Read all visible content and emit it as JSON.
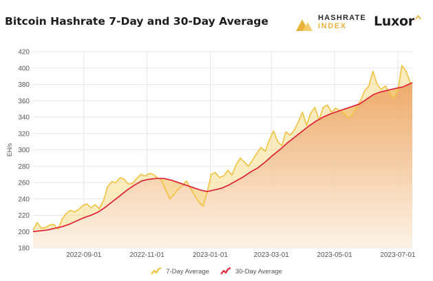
{
  "header": {
    "title": "Bitcoin Hashrate 7-Day and 30-Day Average",
    "brand1_line1": "HASHRATE",
    "brand1_line2": "INDEX",
    "brand2": "Luxor"
  },
  "colors": {
    "seven_day": "#f2c13f",
    "thirty_day": "#e0283a",
    "area_top": "#eca25a",
    "area_bottom": "#fdf1e4",
    "grid": "#e6e6e6",
    "text": "#555555"
  },
  "chart_data": {
    "type": "line",
    "title": "Bitcoin Hashrate 7-Day and 30-Day Average",
    "ylabel": "EH/s",
    "xlabel": "",
    "ylim": [
      180,
      420
    ],
    "yticks": [
      180,
      200,
      220,
      240,
      260,
      280,
      300,
      320,
      340,
      360,
      380,
      400,
      420
    ],
    "xticks": [
      "2022-09-01",
      "2022-11-01",
      "2023-01-01",
      "2023-03-01",
      "2023-05-01",
      "2023-07-01"
    ],
    "xrange": [
      "2022-07-14",
      "2023-07-15"
    ],
    "grid": true,
    "legend": "bottom",
    "series": [
      {
        "name": "7-Day Average",
        "dates": [
          "2022-07-14",
          "2022-07-18",
          "2022-07-22",
          "2022-07-26",
          "2022-07-30",
          "2022-08-03",
          "2022-08-07",
          "2022-08-11",
          "2022-08-15",
          "2022-08-19",
          "2022-08-23",
          "2022-08-27",
          "2022-08-31",
          "2022-09-04",
          "2022-09-08",
          "2022-09-12",
          "2022-09-16",
          "2022-09-20",
          "2022-09-24",
          "2022-09-28",
          "2022-10-02",
          "2022-10-06",
          "2022-10-10",
          "2022-10-14",
          "2022-10-18",
          "2022-10-22",
          "2022-10-26",
          "2022-10-30",
          "2022-11-03",
          "2022-11-07",
          "2022-11-11",
          "2022-11-15",
          "2022-11-19",
          "2022-11-23",
          "2022-11-27",
          "2022-12-01",
          "2022-12-05",
          "2022-12-09",
          "2022-12-13",
          "2022-12-17",
          "2022-12-21",
          "2022-12-25",
          "2022-12-29",
          "2023-01-02",
          "2023-01-06",
          "2023-01-10",
          "2023-01-14",
          "2023-01-18",
          "2023-01-22",
          "2023-01-26",
          "2023-01-30",
          "2023-02-03",
          "2023-02-07",
          "2023-02-11",
          "2023-02-15",
          "2023-02-19",
          "2023-02-23",
          "2023-02-27",
          "2023-03-03",
          "2023-03-07",
          "2023-03-11",
          "2023-03-15",
          "2023-03-19",
          "2023-03-23",
          "2023-03-27",
          "2023-03-31",
          "2023-04-04",
          "2023-04-08",
          "2023-04-12",
          "2023-04-16",
          "2023-04-20",
          "2023-04-24",
          "2023-04-28",
          "2023-05-02",
          "2023-05-06",
          "2023-05-10",
          "2023-05-14",
          "2023-05-18",
          "2023-05-22",
          "2023-05-26",
          "2023-05-30",
          "2023-06-03",
          "2023-06-07",
          "2023-06-11",
          "2023-06-15",
          "2023-06-19",
          "2023-06-23",
          "2023-06-27",
          "2023-07-01",
          "2023-07-05",
          "2023-07-09",
          "2023-07-13",
          "2023-07-15"
        ],
        "values": [
          202,
          211,
          204,
          205,
          208,
          209,
          203,
          215,
          222,
          226,
          224,
          227,
          232,
          234,
          229,
          233,
          228,
          238,
          255,
          261,
          260,
          266,
          264,
          258,
          259,
          265,
          270,
          268,
          271,
          270,
          266,
          263,
          251,
          240,
          245,
          252,
          256,
          262,
          253,
          244,
          236,
          231,
          248,
          270,
          272,
          266,
          268,
          275,
          269,
          282,
          290,
          285,
          280,
          288,
          296,
          303,
          298,
          312,
          323,
          310,
          305,
          322,
          318,
          324,
          334,
          346,
          330,
          345,
          352,
          336,
          352,
          355,
          346,
          351,
          348,
          345,
          339,
          342,
          352,
          360,
          372,
          378,
          396,
          380,
          374,
          378,
          370,
          363,
          372,
          403,
          396,
          382,
          381
        ]
      },
      {
        "name": "30-Day Average",
        "dates": [
          "2022-07-14",
          "2022-07-21",
          "2022-07-28",
          "2022-08-04",
          "2022-08-11",
          "2022-08-18",
          "2022-08-25",
          "2022-09-01",
          "2022-09-08",
          "2022-09-15",
          "2022-09-22",
          "2022-09-29",
          "2022-10-06",
          "2022-10-13",
          "2022-10-20",
          "2022-10-27",
          "2022-11-03",
          "2022-11-10",
          "2022-11-17",
          "2022-11-24",
          "2022-12-01",
          "2022-12-08",
          "2022-12-15",
          "2022-12-22",
          "2022-12-29",
          "2023-01-05",
          "2023-01-12",
          "2023-01-19",
          "2023-01-26",
          "2023-02-02",
          "2023-02-09",
          "2023-02-16",
          "2023-02-23",
          "2023-03-02",
          "2023-03-09",
          "2023-03-16",
          "2023-03-23",
          "2023-03-30",
          "2023-04-06",
          "2023-04-13",
          "2023-04-20",
          "2023-04-27",
          "2023-05-04",
          "2023-05-11",
          "2023-05-18",
          "2023-05-25",
          "2023-06-01",
          "2023-06-08",
          "2023-06-15",
          "2023-06-22",
          "2023-06-29",
          "2023-07-06",
          "2023-07-15"
        ],
        "values": [
          200,
          201,
          202,
          204,
          206,
          209,
          213,
          217,
          220,
          224,
          230,
          237,
          244,
          251,
          257,
          262,
          264,
          265,
          265,
          263,
          260,
          257,
          254,
          251,
          249,
          251,
          253,
          257,
          262,
          267,
          273,
          278,
          285,
          293,
          300,
          308,
          315,
          322,
          329,
          335,
          340,
          344,
          347,
          350,
          353,
          356,
          362,
          368,
          371,
          373,
          375,
          377,
          382
        ]
      }
    ]
  }
}
